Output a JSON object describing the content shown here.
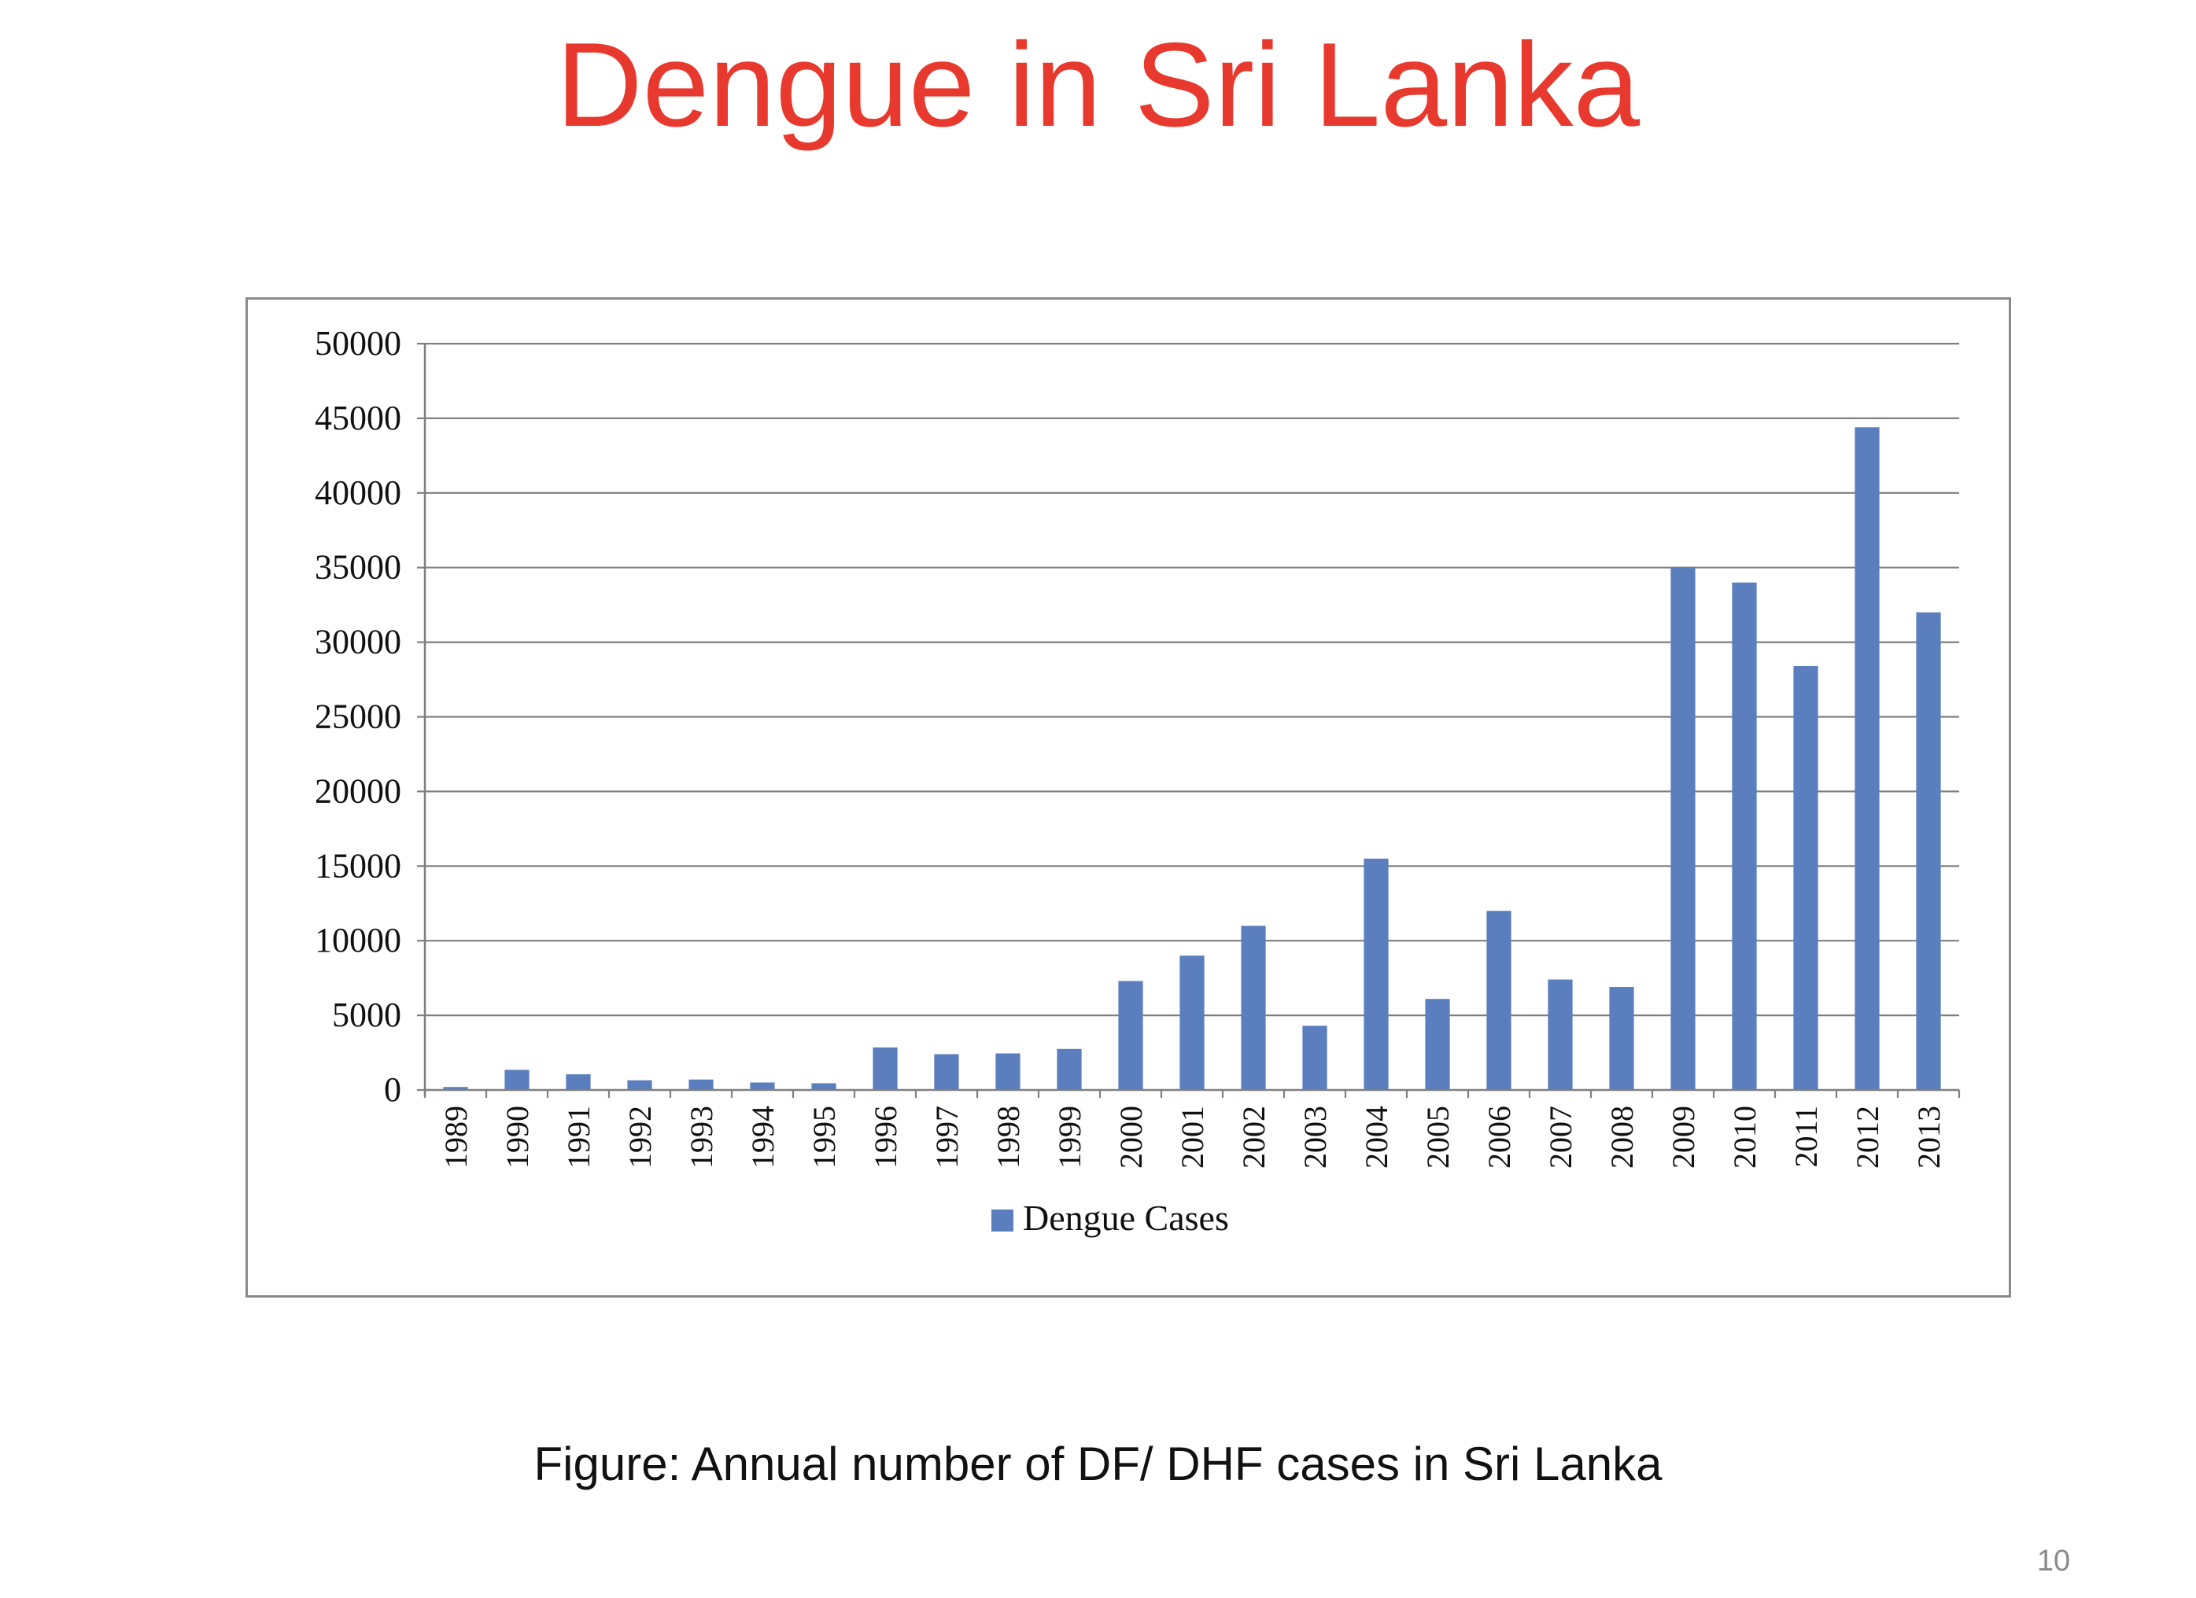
{
  "slide": {
    "title": "Dengue in Sri Lanka",
    "caption": "Figure: Annual number of DF/ DHF cases in Sri Lanka",
    "page_number": "10"
  },
  "colors": {
    "title": "#e8392e",
    "bar": "#5b7fbe",
    "gridline": "#7f7f7f",
    "axis_text": "#111111"
  },
  "chart_data": {
    "type": "bar",
    "categories": [
      "1989",
      "1990",
      "1991",
      "1992",
      "1993",
      "1994",
      "1995",
      "1996",
      "1997",
      "1998",
      "1999",
      "2000",
      "2001",
      "2002",
      "2003",
      "2004",
      "2005",
      "2006",
      "2007",
      "2008",
      "2009",
      "2010",
      "2011",
      "2012",
      "2013"
    ],
    "series": [
      {
        "name": "Dengue Cases",
        "values": [
          200,
          1350,
          1050,
          650,
          700,
          500,
          450,
          2850,
          2400,
          2450,
          2750,
          7300,
          9000,
          11000,
          4300,
          15500,
          6100,
          12000,
          7400,
          6900,
          35000,
          34000,
          28400,
          44400,
          32000
        ]
      }
    ],
    "yticks": [
      "0",
      "5000",
      "10000",
      "15000",
      "20000",
      "25000",
      "30000",
      "35000",
      "40000",
      "45000",
      "50000"
    ],
    "ylim": [
      0,
      50000
    ],
    "grid": true,
    "legend_position": "bottom"
  }
}
